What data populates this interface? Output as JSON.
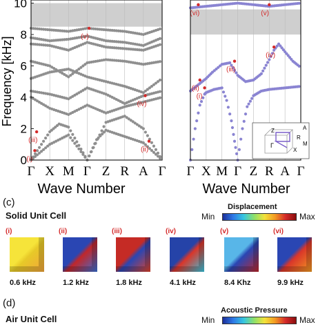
{
  "chart_data": [
    {
      "type": "scatter",
      "panel": "left",
      "ylabel": "Frequency [kHz]",
      "xlabel": "Wave Number",
      "ylim": [
        0,
        10
      ],
      "yticks": [
        "0",
        "2",
        "4",
        "6",
        "8",
        "10"
      ],
      "xticks": [
        "Γ",
        "X",
        "M",
        "Γ",
        "Z",
        "R",
        "A",
        "Γ"
      ],
      "bandgap_khz": [
        8.5,
        10.0
      ],
      "mode_markers": [
        {
          "label": "(i)",
          "x": 0.2,
          "y": 0.6
        },
        {
          "label": "(ii)",
          "x": 6.3,
          "y": 1.2
        },
        {
          "label": "(iii)",
          "x": 0.3,
          "y": 1.8
        },
        {
          "label": "(iv)",
          "x": 6.1,
          "y": 4.1
        },
        {
          "label": "(v)",
          "x": 3.1,
          "y": 8.4
        }
      ],
      "series": [
        {
          "values": [
            [
              0,
              0
            ],
            [
              1,
              1.8
            ],
            [
              1.5,
              2.3
            ],
            [
              2,
              2.1
            ],
            [
              3,
              0
            ],
            [
              3.5,
              1.3
            ],
            [
              4,
              1.9
            ],
            [
              5,
              1.5
            ],
            [
              6,
              1.1
            ],
            [
              7,
              0
            ]
          ]
        },
        {
          "values": [
            [
              0,
              0
            ],
            [
              1,
              1.0
            ],
            [
              2,
              1.6
            ],
            [
              3,
              0
            ],
            [
              4,
              2.4
            ],
            [
              5,
              2.8
            ],
            [
              6,
              2.0
            ],
            [
              7,
              0
            ]
          ]
        },
        {
          "values": [
            [
              0,
              4.0
            ],
            [
              1,
              3.3
            ],
            [
              2,
              2.9
            ],
            [
              3,
              3.5
            ],
            [
              4,
              3.0
            ],
            [
              5,
              3.4
            ],
            [
              6,
              3.7
            ],
            [
              7,
              4.0
            ]
          ]
        },
        {
          "values": [
            [
              0,
              4.4
            ],
            [
              1,
              4.2
            ],
            [
              2,
              3.9
            ],
            [
              3,
              4.6
            ],
            [
              4,
              4.2
            ],
            [
              5,
              3.6
            ],
            [
              6,
              4.1
            ],
            [
              7,
              4.4
            ]
          ]
        },
        {
          "values": [
            [
              0,
              5.2
            ],
            [
              1,
              5.6
            ],
            [
              2,
              5.8
            ],
            [
              3,
              5.3
            ],
            [
              4,
              5.0
            ],
            [
              5,
              4.7
            ],
            [
              6,
              4.3
            ],
            [
              7,
              5.2
            ]
          ]
        },
        {
          "values": [
            [
              0,
              6.3
            ],
            [
              1,
              6.0
            ],
            [
              2,
              5.3
            ],
            [
              3,
              6.2
            ],
            [
              4,
              6.4
            ],
            [
              5,
              6.3
            ],
            [
              6,
              6.1
            ],
            [
              7,
              6.3
            ]
          ]
        },
        {
          "values": [
            [
              0,
              7.4
            ],
            [
              1,
              7.3
            ],
            [
              2,
              7.0
            ],
            [
              3,
              7.5
            ],
            [
              4,
              7.2
            ],
            [
              5,
              7.1
            ],
            [
              6,
              7.0
            ],
            [
              7,
              7.4
            ]
          ]
        },
        {
          "values": [
            [
              0,
              7.8
            ],
            [
              1,
              7.6
            ],
            [
              2,
              7.7
            ],
            [
              3,
              7.9
            ],
            [
              4,
              7.6
            ],
            [
              5,
              7.5
            ],
            [
              6,
              7.3
            ],
            [
              7,
              7.8
            ]
          ]
        },
        {
          "values": [
            [
              0,
              8.4
            ],
            [
              1,
              8.3
            ],
            [
              2,
              8.2
            ],
            [
              3,
              8.4
            ],
            [
              4,
              8.3
            ],
            [
              5,
              8.2
            ],
            [
              6,
              8.0
            ],
            [
              7,
              8.4
            ]
          ]
        }
      ]
    },
    {
      "type": "scatter",
      "panel": "right",
      "xlabel": "Wave Number",
      "xticks": [
        "Γ",
        "X",
        "M",
        "Γ",
        "Z",
        "R",
        "A",
        "Γ"
      ],
      "ylim": [
        0,
        10
      ],
      "bandgap_khz": [
        8.0,
        9.6
      ],
      "mode_markers": [
        {
          "label": "(i)",
          "x": 0.9,
          "y": 4.6
        },
        {
          "label": "(ii)",
          "x": 0.6,
          "y": 5.1
        },
        {
          "label": "(iii)",
          "x": 2.8,
          "y": 6.3
        },
        {
          "label": "(iv)",
          "x": 5.3,
          "y": 7.2
        },
        {
          "label": "(v)",
          "x": 5.0,
          "y": 9.9
        },
        {
          "label": "(vi)",
          "x": 0.5,
          "y": 9.9
        }
      ],
      "series": [
        {
          "values": [
            [
              0,
              0
            ],
            [
              0.3,
              2.0
            ],
            [
              0.6,
              3.5
            ],
            [
              0.9,
              4.2
            ],
            [
              1,
              4.3
            ],
            [
              1.5,
              4.5
            ],
            [
              2,
              4.6
            ],
            [
              2.3,
              3.8
            ],
            [
              2.6,
              2.5
            ],
            [
              2.8,
              1.2
            ],
            [
              3,
              0
            ],
            [
              3.3,
              2.0
            ],
            [
              3.6,
              3.4
            ],
            [
              4,
              4.1
            ],
            [
              4.5,
              4.4
            ],
            [
              5,
              4.5
            ],
            [
              6,
              4.6
            ],
            [
              7,
              4.7
            ]
          ]
        },
        {
          "values": [
            [
              0,
              4.4
            ],
            [
              0.5,
              4.8
            ],
            [
              1,
              5.2
            ],
            [
              1.4,
              5.6
            ],
            [
              2,
              6.1
            ],
            [
              2.5,
              6.2
            ],
            [
              3,
              5.4
            ],
            [
              3.5,
              5.0
            ],
            [
              4,
              5.1
            ],
            [
              4.5,
              5.5
            ],
            [
              5,
              6.4
            ],
            [
              5.3,
              7.0
            ],
            [
              5.6,
              7.4
            ],
            [
              6,
              6.9
            ],
            [
              6.5,
              6.3
            ],
            [
              7,
              5.9
            ]
          ]
        },
        {
          "values": [
            [
              0,
              9.7
            ],
            [
              1,
              9.8
            ],
            [
              2,
              9.9
            ],
            [
              3,
              10.0
            ],
            [
              4,
              9.9
            ],
            [
              5,
              9.8
            ],
            [
              6,
              9.9
            ],
            [
              7,
              10.0
            ]
          ]
        }
      ],
      "inset": {
        "labels": [
          "Z",
          "A",
          "R",
          "Γ",
          "X",
          "M"
        ]
      }
    }
  ],
  "panels": {
    "left": {
      "ylabel": "Frequency [kHz]",
      "xlabel": "Wave Number",
      "yticks": [
        "0",
        "2",
        "4",
        "6",
        "8",
        "10"
      ],
      "xticks": [
        "Γ",
        "X",
        "M",
        "Γ",
        "Z",
        "R",
        "A",
        "Γ"
      ],
      "markers": [
        "(i)",
        "(ii)",
        "(iii)",
        "(iv)",
        "(v)"
      ]
    },
    "right": {
      "xlabel": "Wave Number",
      "xticks": [
        "Γ",
        "X",
        "M",
        "Γ",
        "Z",
        "R",
        "A",
        "Γ"
      ],
      "markers": [
        "(i)",
        "(ii)",
        "(iii)",
        "(iv)",
        "(v)",
        "(vi)"
      ],
      "inset_labels": [
        "Z",
        "A",
        "R",
        "Γ",
        "X",
        "M"
      ]
    }
  },
  "section_c": {
    "label": "(c)",
    "title": "Solid Unit Cell",
    "colorbar": {
      "title": "Displacement",
      "min": "Min",
      "max": "Max"
    },
    "modes": [
      {
        "tag": "(i)",
        "freq": "0.6 kHz"
      },
      {
        "tag": "(ii)",
        "freq": "1.2 kHz"
      },
      {
        "tag": "(iii)",
        "freq": "1.8 kHz"
      },
      {
        "tag": "(iv)",
        "freq": "4.1 kHz"
      },
      {
        "tag": "(v)",
        "freq": "8.4 Khz"
      },
      {
        "tag": "(vi)",
        "freq": "9.9 kHz"
      }
    ]
  },
  "section_d": {
    "label": "(d)",
    "title": "Air Unit Cell",
    "colorbar": {
      "title": "Acoustic Pressure",
      "min": "Min",
      "max": "Max"
    }
  },
  "colors": {
    "left_points": "#8f8f8f",
    "right_points": "#8a84d2",
    "bandgap": "#cfcfcf",
    "marker": "#d42a2a"
  }
}
